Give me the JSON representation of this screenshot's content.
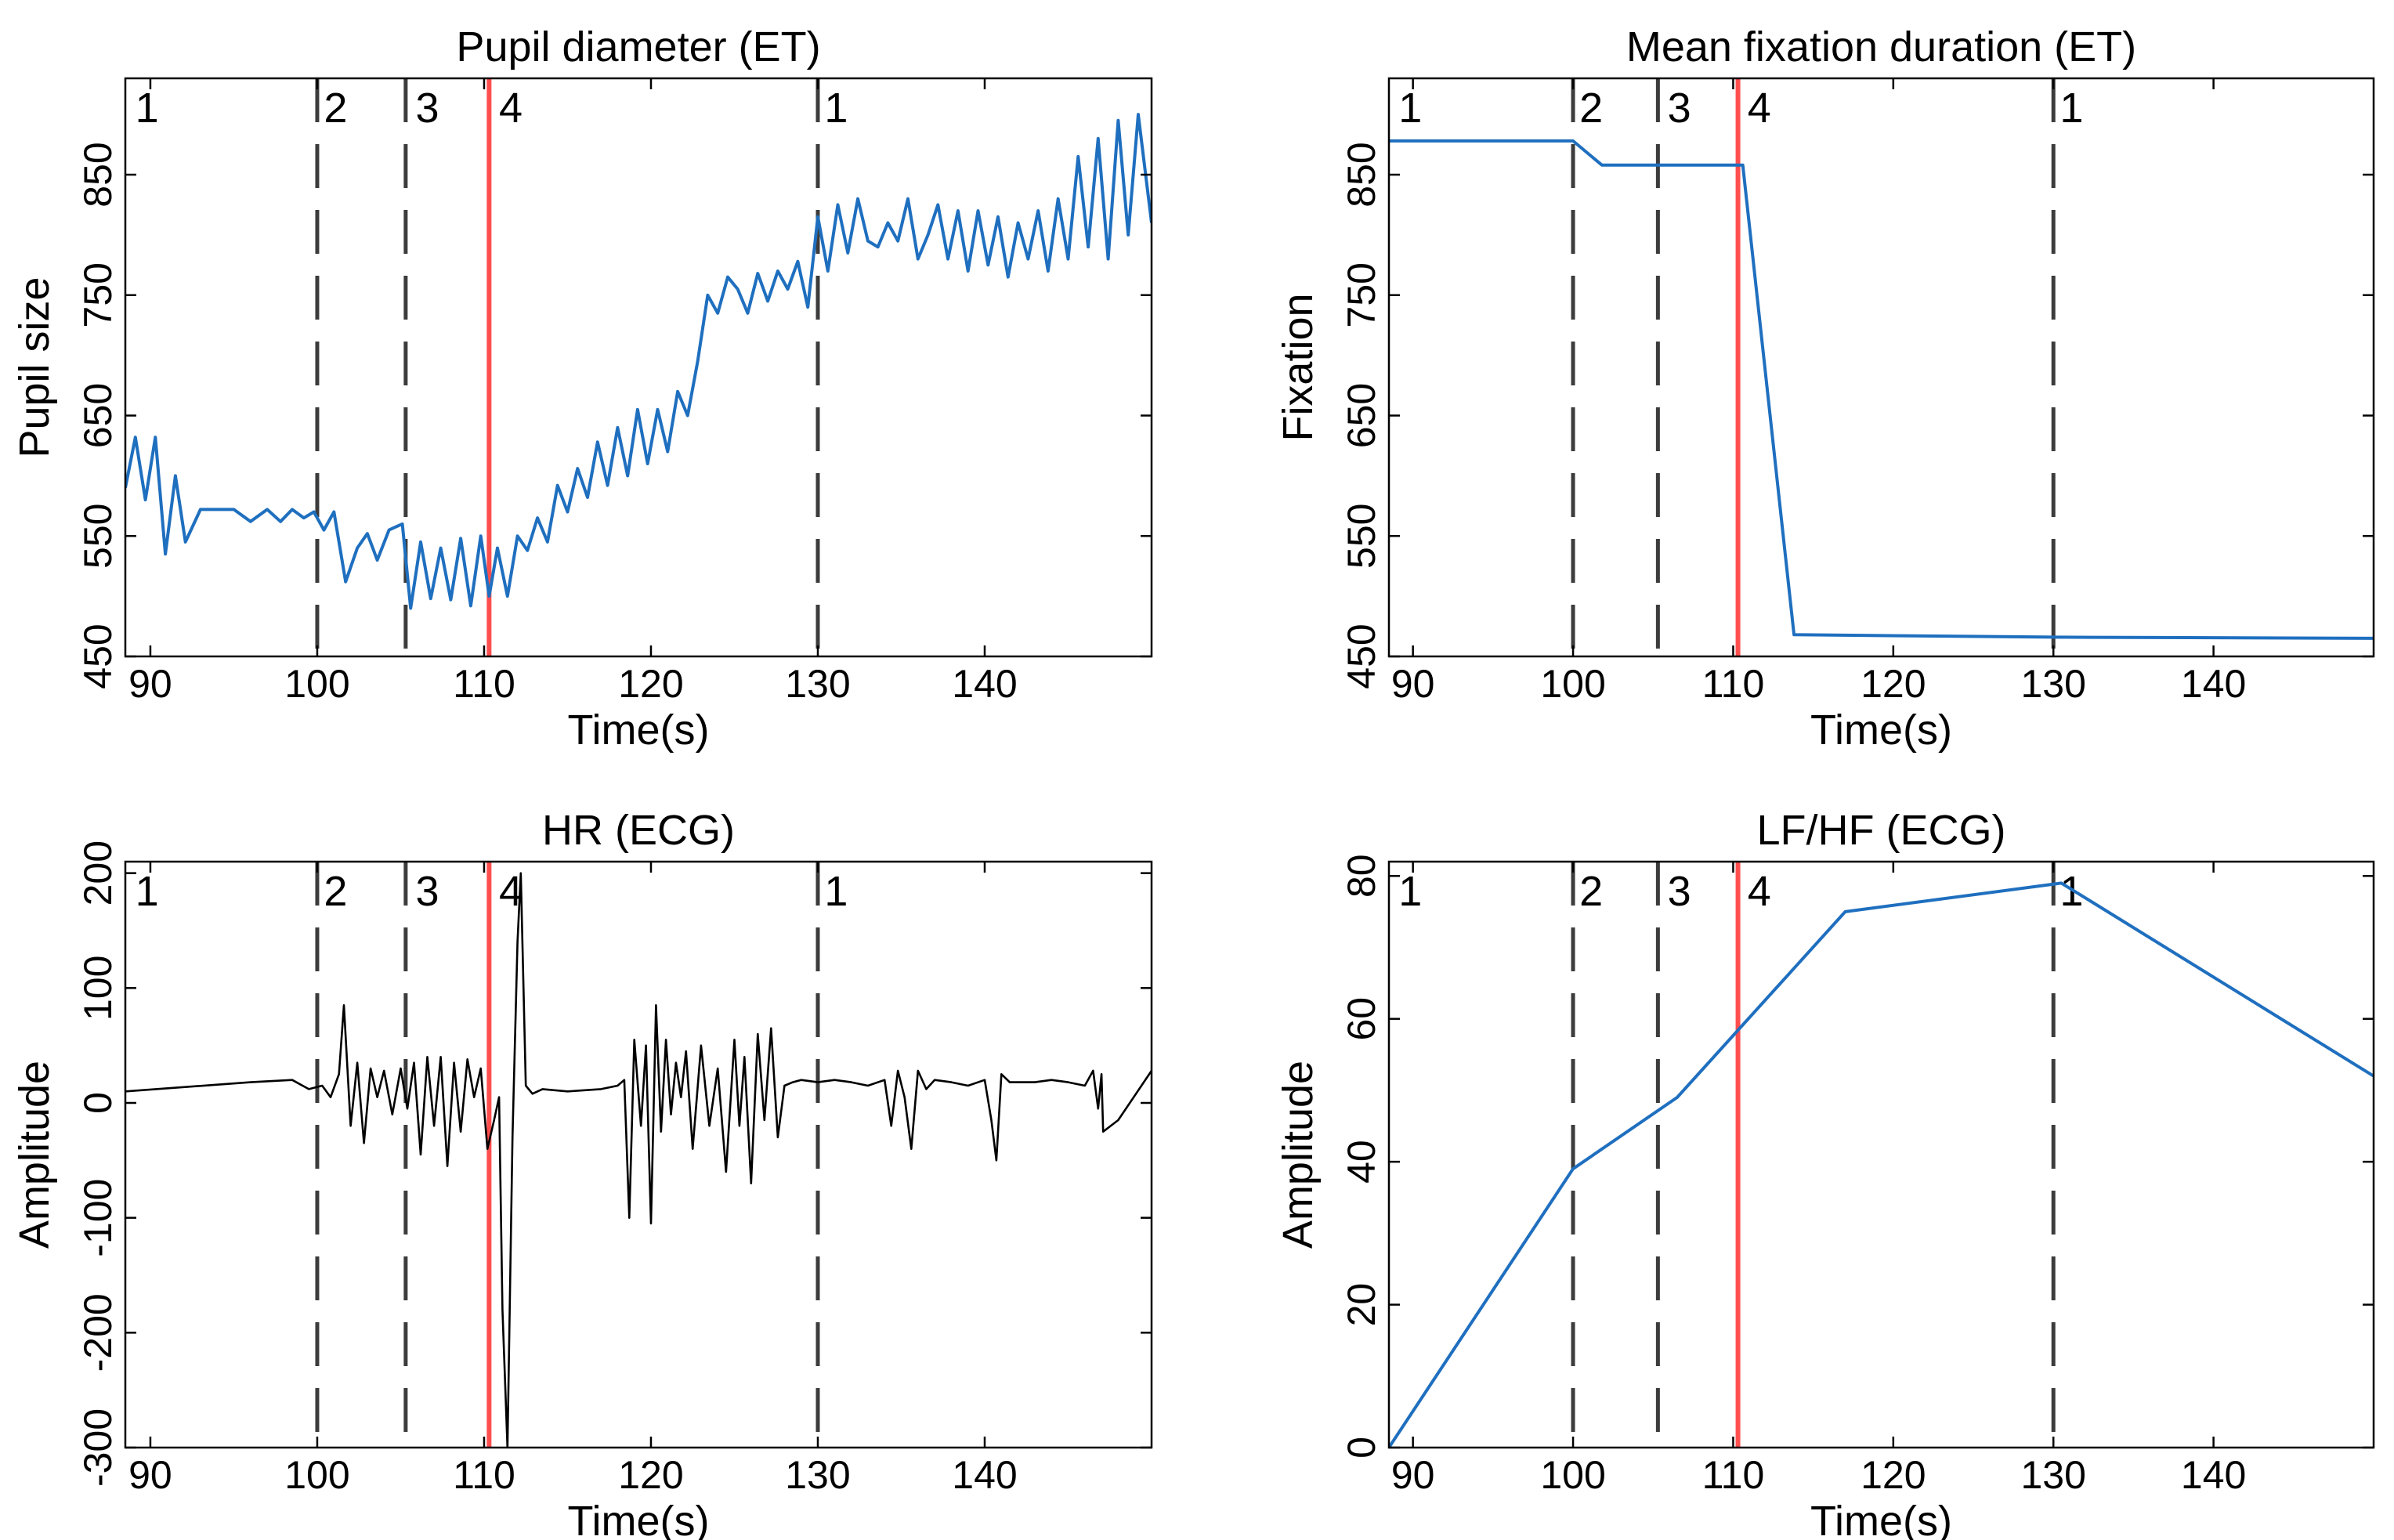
{
  "figure": {
    "colors": {
      "series_blue": "#1f6fbf",
      "series_black": "#000000",
      "marker_red": "#ff3b3b",
      "phase_dash": "#3c3c3c"
    }
  },
  "chart_data": [
    {
      "type": "line",
      "title": "Pupil diameter (ET)",
      "xlabel": "Time(s)",
      "ylabel": "Pupil size",
      "xlim": [
        88.5,
        150
      ],
      "ylim": [
        450,
        930
      ],
      "xticks": [
        90,
        100,
        110,
        120,
        130,
        140
      ],
      "yticks": [
        450,
        550,
        650,
        750,
        850
      ],
      "grid": false,
      "phase_lines": [
        {
          "x": 100.0,
          "style": "dashed"
        },
        {
          "x": 105.3,
          "style": "dashed"
        },
        {
          "x": 110.3,
          "style": "solid-red"
        },
        {
          "x": 130.0,
          "style": "dashed"
        }
      ],
      "phase_labels": [
        {
          "x": 89.0,
          "text": "1"
        },
        {
          "x": 100.3,
          "text": "2"
        },
        {
          "x": 105.8,
          "text": "3"
        },
        {
          "x": 110.8,
          "text": "4"
        },
        {
          "x": 130.3,
          "text": "1"
        }
      ],
      "series": [
        {
          "name": "pupil",
          "color": "#1f6fbf",
          "x": [
            88.5,
            89.1,
            89.7,
            90.3,
            90.9,
            91.5,
            92.1,
            93,
            94,
            95,
            96,
            97,
            97.8,
            98.5,
            99.2,
            99.8,
            100.4,
            101,
            101.7,
            102.4,
            103,
            103.6,
            104.3,
            105.1,
            105.6,
            106.2,
            106.8,
            107.4,
            108,
            108.6,
            109.2,
            109.8,
            110.3,
            110.8,
            111.4,
            112,
            112.6,
            113.2,
            113.8,
            114.4,
            115,
            115.6,
            116.2,
            116.8,
            117.4,
            118,
            118.6,
            119.2,
            119.8,
            120.4,
            121,
            121.6,
            122.2,
            122.8,
            123.4,
            124,
            124.6,
            125.2,
            125.8,
            126.4,
            127,
            127.6,
            128.2,
            128.8,
            129.4,
            130,
            130.6,
            131.2,
            131.8,
            132.4,
            133,
            133.6,
            134.2,
            134.8,
            135.4,
            136,
            136.6,
            137.2,
            137.8,
            138.4,
            139,
            139.6,
            140.2,
            140.8,
            141.4,
            142,
            142.6,
            143.2,
            143.8,
            144.4,
            145,
            145.6,
            146.2,
            146.8,
            147.4,
            148,
            148.6,
            149.2,
            150
          ],
          "values": [
            590,
            632,
            580,
            632,
            535,
            600,
            545,
            572,
            572,
            572,
            562,
            572,
            562,
            572,
            565,
            570,
            555,
            570,
            512,
            540,
            552,
            530,
            555,
            560,
            490,
            545,
            498,
            540,
            497,
            548,
            492,
            550,
            500,
            540,
            500,
            550,
            538,
            565,
            545,
            592,
            570,
            606,
            582,
            628,
            592,
            640,
            600,
            655,
            610,
            655,
            620,
            670,
            650,
            695,
            750,
            735,
            765,
            755,
            735,
            768,
            745,
            770,
            755,
            778,
            740,
            815,
            770,
            825,
            785,
            830,
            795,
            790,
            810,
            795,
            830,
            780,
            800,
            825,
            780,
            820,
            770,
            820,
            775,
            815,
            765,
            810,
            780,
            820,
            770,
            830,
            780,
            865,
            790,
            880,
            780,
            895,
            800,
            900,
            810
          ]
        }
      ]
    },
    {
      "type": "line",
      "title": "Mean fixation duration (ET)",
      "xlabel": "Time(s)",
      "ylabel": "Fixation",
      "xlim": [
        88.5,
        150
      ],
      "ylim": [
        450,
        930
      ],
      "xticks": [
        90,
        100,
        110,
        120,
        130,
        140
      ],
      "yticks": [
        450,
        550,
        650,
        750,
        850
      ],
      "grid": false,
      "phase_lines": [
        {
          "x": 100.0,
          "style": "dashed"
        },
        {
          "x": 105.3,
          "style": "dashed"
        },
        {
          "x": 110.3,
          "style": "solid-red"
        },
        {
          "x": 130.0,
          "style": "dashed"
        }
      ],
      "phase_labels": [
        {
          "x": 89.0,
          "text": "1"
        },
        {
          "x": 100.3,
          "text": "2"
        },
        {
          "x": 105.8,
          "text": "3"
        },
        {
          "x": 110.8,
          "text": "4"
        },
        {
          "x": 130.3,
          "text": "1"
        }
      ],
      "series": [
        {
          "name": "fixation",
          "color": "#1f6fbf",
          "x": [
            88.5,
            100.0,
            101.8,
            110.6,
            113.8,
            130.0,
            150.0
          ],
          "values": [
            878,
            878,
            858,
            858,
            468,
            466,
            465
          ]
        }
      ]
    },
    {
      "type": "line",
      "title": "HR (ECG)",
      "xlabel": "Time(s)",
      "ylabel": "Amplitude",
      "xlim": [
        88.5,
        150
      ],
      "ylim": [
        -300,
        210
      ],
      "xticks": [
        90,
        100,
        110,
        120,
        130,
        140
      ],
      "yticks": [
        -300,
        -200,
        -100,
        0,
        100,
        200
      ],
      "grid": false,
      "phase_lines": [
        {
          "x": 100.0,
          "style": "dashed"
        },
        {
          "x": 105.3,
          "style": "dashed"
        },
        {
          "x": 110.3,
          "style": "solid-red"
        },
        {
          "x": 130.0,
          "style": "dashed"
        }
      ],
      "phase_labels": [
        {
          "x": 89.0,
          "text": "1"
        },
        {
          "x": 100.3,
          "text": "2"
        },
        {
          "x": 105.8,
          "text": "3"
        },
        {
          "x": 110.8,
          "text": "4"
        },
        {
          "x": 130.3,
          "text": "1"
        }
      ],
      "series": [
        {
          "name": "hr",
          "color": "#000000",
          "x": [
            88.5,
            96,
            98.5,
            99.5,
            100.3,
            100.8,
            101.3,
            101.6,
            102,
            102.4,
            102.8,
            103.2,
            103.6,
            104,
            104.5,
            105,
            105.4,
            105.8,
            106.2,
            106.6,
            107,
            107.4,
            107.8,
            108.2,
            108.6,
            109,
            109.4,
            109.8,
            110.2,
            110.6,
            110.9,
            111.1,
            111.4,
            111.7,
            112,
            112.2,
            112.5,
            112.9,
            113.5,
            115,
            117,
            118,
            118.4,
            118.7,
            119,
            119.4,
            119.7,
            120,
            120.3,
            120.6,
            120.9,
            121.2,
            121.5,
            121.8,
            122.1,
            122.5,
            123,
            123.5,
            124,
            124.5,
            125,
            125.3,
            125.6,
            126,
            126.4,
            126.8,
            127.2,
            127.6,
            128,
            128.5,
            129,
            130,
            131,
            132,
            133,
            134,
            134.4,
            134.8,
            135.2,
            135.6,
            136,
            136.5,
            137,
            138,
            139,
            140,
            140.4,
            140.7,
            141,
            141.5,
            142,
            143,
            144,
            145,
            146,
            146.5,
            146.8,
            147,
            147.1,
            148,
            150
          ],
          "values": [
            10,
            18,
            20,
            12,
            15,
            5,
            25,
            85,
            -20,
            35,
            -35,
            30,
            5,
            28,
            -10,
            30,
            -5,
            35,
            -45,
            40,
            -20,
            40,
            -55,
            35,
            -25,
            38,
            5,
            30,
            -40,
            -15,
            5,
            -180,
            -300,
            -30,
            140,
            200,
            15,
            8,
            12,
            10,
            12,
            15,
            20,
            -100,
            55,
            -20,
            50,
            -105,
            85,
            -25,
            55,
            -10,
            35,
            5,
            45,
            -40,
            50,
            -20,
            30,
            -60,
            55,
            -20,
            40,
            -70,
            60,
            -15,
            65,
            -30,
            15,
            18,
            20,
            18,
            20,
            18,
            15,
            20,
            -20,
            28,
            5,
            -40,
            28,
            12,
            20,
            18,
            15,
            20,
            -15,
            -50,
            25,
            18,
            18,
            18,
            20,
            18,
            15,
            28,
            -5,
            25,
            -25,
            -15,
            28
          ]
        }
      ]
    },
    {
      "type": "line",
      "title": "LF/HF (ECG)",
      "xlabel": "Time(s)",
      "ylabel": "Amplitude",
      "xlim": [
        88.5,
        150
      ],
      "ylim": [
        0,
        82
      ],
      "xticks": [
        90,
        100,
        110,
        120,
        130,
        140
      ],
      "yticks": [
        0,
        20,
        40,
        60,
        80
      ],
      "grid": false,
      "phase_lines": [
        {
          "x": 100.0,
          "style": "dashed"
        },
        {
          "x": 105.3,
          "style": "dashed"
        },
        {
          "x": 110.3,
          "style": "solid-red"
        },
        {
          "x": 130.0,
          "style": "dashed"
        }
      ],
      "phase_labels": [
        {
          "x": 89.0,
          "text": "1"
        },
        {
          "x": 100.3,
          "text": "2"
        },
        {
          "x": 105.8,
          "text": "3"
        },
        {
          "x": 110.8,
          "text": "4"
        },
        {
          "x": 130.3,
          "text": "1"
        }
      ],
      "series": [
        {
          "name": "lfhf",
          "color": "#1f6fbf",
          "x": [
            88.5,
            100.0,
            106.5,
            117.0,
            130.5,
            150.0
          ],
          "values": [
            0,
            39,
            49,
            75,
            79,
            52
          ]
        }
      ]
    }
  ]
}
